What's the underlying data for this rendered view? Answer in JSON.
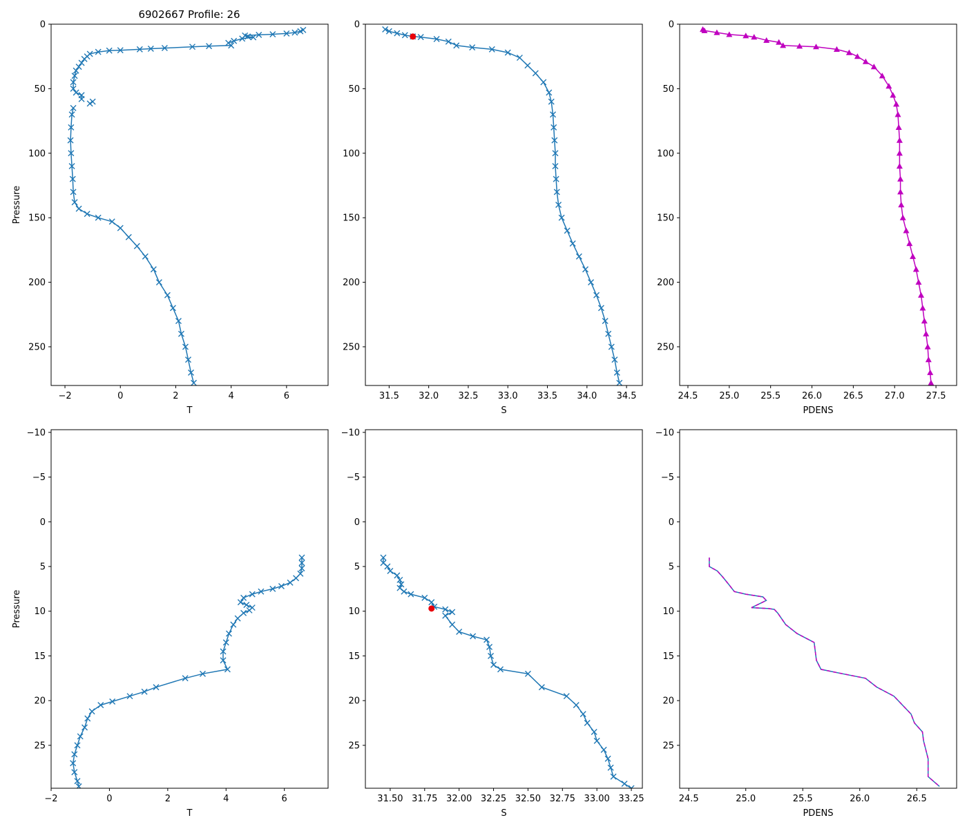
{
  "figure_title": "6902667 Profile: 26",
  "colors": {
    "blue": "#1f77b4",
    "magenta": "#bf00bf",
    "red": "#e8000b"
  },
  "chart_data": [
    {
      "id": "top-temperature",
      "type": "line",
      "marker": "x",
      "color": "#1f77b4",
      "title": "6902667 Profile: 26",
      "xlabel": "T",
      "ylabel": "Pressure",
      "xlim": [
        -2.5,
        7.5
      ],
      "ylim": [
        280,
        0
      ],
      "xticks": [
        -2,
        0,
        2,
        4,
        6
      ],
      "xticklabels": [
        "−2",
        "0",
        "2",
        "4",
        "6"
      ],
      "yticks": [
        0,
        50,
        100,
        150,
        200,
        250
      ],
      "yticklabels": [
        "0",
        "50",
        "100",
        "150",
        "200",
        "250"
      ],
      "points": [
        [
          6.6,
          4.5
        ],
        [
          6.5,
          5.5
        ],
        [
          6.3,
          6.5
        ],
        [
          6.0,
          7.2
        ],
        [
          5.5,
          7.8
        ],
        [
          5.0,
          8.3
        ],
        [
          4.5,
          8.8
        ],
        [
          4.6,
          9.6
        ],
        [
          4.8,
          10.2
        ],
        [
          4.4,
          11.2
        ],
        [
          4.1,
          13.0
        ],
        [
          3.9,
          14.5
        ],
        [
          4.0,
          16.5
        ],
        [
          3.2,
          17.0
        ],
        [
          2.6,
          17.5
        ],
        [
          1.6,
          18.5
        ],
        [
          1.1,
          19.0
        ],
        [
          0.7,
          19.5
        ],
        [
          0.0,
          20.2
        ],
        [
          -0.4,
          20.5
        ],
        [
          -0.8,
          21.5
        ],
        [
          -1.1,
          23.0
        ],
        [
          -1.2,
          25.0
        ],
        [
          -1.3,
          27.0
        ],
        [
          -1.4,
          30.0
        ],
        [
          -1.5,
          33.0
        ],
        [
          -1.6,
          36.0
        ],
        [
          -1.65,
          40.0
        ],
        [
          -1.7,
          45.0
        ],
        [
          -1.7,
          50.0
        ],
        [
          -1.6,
          53.0
        ],
        [
          -1.4,
          55.0
        ],
        [
          -1.4,
          58.0
        ]
      ],
      "points2": [
        [
          -1.0,
          60.0
        ],
        [
          -1.1,
          61.5
        ]
      ],
      "points3": [
        [
          -1.7,
          65.0
        ],
        [
          -1.75,
          70.0
        ],
        [
          -1.78,
          80.0
        ],
        [
          -1.8,
          90.0
        ],
        [
          -1.78,
          100.0
        ],
        [
          -1.75,
          110.0
        ],
        [
          -1.72,
          120.0
        ],
        [
          -1.7,
          130.0
        ],
        [
          -1.65,
          138.0
        ],
        [
          -1.5,
          143.0
        ],
        [
          -1.2,
          147.0
        ],
        [
          -0.8,
          150.0
        ],
        [
          -0.3,
          153.0
        ],
        [
          0.0,
          158.0
        ],
        [
          0.3,
          165.0
        ],
        [
          0.6,
          172.0
        ],
        [
          0.9,
          180.0
        ],
        [
          1.2,
          190.0
        ],
        [
          1.4,
          200.0
        ],
        [
          1.7,
          210.0
        ],
        [
          1.9,
          220.0
        ],
        [
          2.1,
          230.0
        ],
        [
          2.2,
          240.0
        ],
        [
          2.35,
          250.0
        ],
        [
          2.45,
          260.0
        ],
        [
          2.55,
          270.0
        ],
        [
          2.65,
          278.0
        ]
      ]
    },
    {
      "id": "top-salinity",
      "type": "line",
      "marker": "x",
      "color": "#1f77b4",
      "xlabel": "S",
      "ylabel": "",
      "xlim": [
        31.2,
        34.7
      ],
      "ylim": [
        280,
        0
      ],
      "xticks": [
        31.5,
        32.0,
        32.5,
        33.0,
        33.5,
        34.0,
        34.5
      ],
      "xticklabels": [
        "31.5",
        "32.0",
        "32.5",
        "33.0",
        "33.5",
        "34.0",
        "34.5"
      ],
      "yticks": [
        0,
        50,
        100,
        150,
        200,
        250
      ],
      "yticklabels": [
        "0",
        "50",
        "100",
        "150",
        "200",
        "250"
      ],
      "points": [
        [
          31.45,
          4.0
        ],
        [
          31.5,
          5.5
        ],
        [
          31.6,
          7.0
        ],
        [
          31.7,
          8.5
        ],
        [
          31.8,
          9.5
        ],
        [
          31.9,
          10.0
        ],
        [
          32.1,
          11.5
        ],
        [
          32.25,
          13.5
        ],
        [
          32.35,
          16.5
        ],
        [
          32.55,
          18.0
        ],
        [
          32.8,
          19.5
        ],
        [
          33.0,
          22.0
        ],
        [
          33.15,
          26.0
        ],
        [
          33.25,
          32.0
        ],
        [
          33.35,
          38.0
        ],
        [
          33.45,
          45.0
        ],
        [
          33.52,
          53.0
        ],
        [
          33.55,
          60.0
        ],
        [
          33.57,
          70.0
        ],
        [
          33.58,
          80.0
        ],
        [
          33.59,
          90.0
        ],
        [
          33.6,
          100.0
        ],
        [
          33.6,
          110.0
        ],
        [
          33.61,
          120.0
        ],
        [
          33.62,
          130.0
        ],
        [
          33.64,
          140.0
        ],
        [
          33.68,
          150.0
        ],
        [
          33.75,
          160.0
        ],
        [
          33.82,
          170.0
        ],
        [
          33.9,
          180.0
        ],
        [
          33.98,
          190.0
        ],
        [
          34.05,
          200.0
        ],
        [
          34.12,
          210.0
        ],
        [
          34.18,
          220.0
        ],
        [
          34.23,
          230.0
        ],
        [
          34.27,
          240.0
        ],
        [
          34.31,
          250.0
        ],
        [
          34.35,
          260.0
        ],
        [
          34.38,
          270.0
        ],
        [
          34.41,
          278.0
        ]
      ],
      "highlight": [
        31.8,
        9.6
      ]
    },
    {
      "id": "top-density",
      "type": "line",
      "marker": "triangle",
      "color": "#bf00bf",
      "xlabel": "PDENS",
      "ylabel": "",
      "xlim": [
        24.4,
        27.75
      ],
      "ylim": [
        280,
        0
      ],
      "xticks": [
        24.5,
        25.0,
        25.5,
        26.0,
        26.5,
        27.0,
        27.5
      ],
      "xticklabels": [
        "24.5",
        "25.0",
        "25.5",
        "26.0",
        "26.5",
        "27.0",
        "27.5"
      ],
      "yticks": [
        0,
        50,
        100,
        150,
        200,
        250
      ],
      "yticklabels": [
        "0",
        "50",
        "100",
        "150",
        "200",
        "250"
      ],
      "points": [
        [
          24.68,
          4.0
        ],
        [
          24.7,
          5.0
        ],
        [
          24.85,
          6.5
        ],
        [
          25.0,
          8.0
        ],
        [
          25.2,
          9.0
        ],
        [
          25.3,
          10.0
        ],
        [
          25.45,
          12.5
        ],
        [
          25.6,
          14.0
        ],
        [
          25.65,
          16.5
        ],
        [
          25.85,
          17.0
        ],
        [
          26.05,
          17.5
        ],
        [
          26.3,
          19.5
        ],
        [
          26.45,
          22.0
        ],
        [
          26.55,
          25.0
        ],
        [
          26.65,
          29.0
        ],
        [
          26.75,
          33.0
        ],
        [
          26.85,
          40.0
        ],
        [
          26.93,
          48.0
        ],
        [
          26.98,
          55.0
        ],
        [
          27.02,
          62.0
        ],
        [
          27.04,
          70.0
        ],
        [
          27.05,
          80.0
        ],
        [
          27.06,
          90.0
        ],
        [
          27.06,
          100.0
        ],
        [
          27.06,
          110.0
        ],
        [
          27.07,
          120.0
        ],
        [
          27.07,
          130.0
        ],
        [
          27.08,
          140.0
        ],
        [
          27.1,
          150.0
        ],
        [
          27.14,
          160.0
        ],
        [
          27.18,
          170.0
        ],
        [
          27.22,
          180.0
        ],
        [
          27.26,
          190.0
        ],
        [
          27.29,
          200.0
        ],
        [
          27.32,
          210.0
        ],
        [
          27.34,
          220.0
        ],
        [
          27.36,
          230.0
        ],
        [
          27.38,
          240.0
        ],
        [
          27.4,
          250.0
        ],
        [
          27.41,
          260.0
        ],
        [
          27.43,
          270.0
        ],
        [
          27.44,
          278.0
        ]
      ]
    },
    {
      "id": "bottom-temperature",
      "type": "line",
      "marker": "x",
      "color": "#1f77b4",
      "xlabel": "T",
      "ylabel": "Pressure",
      "xlim": [
        -2,
        7.5
      ],
      "ylim": [
        29.8,
        -10.3
      ],
      "xticks": [
        -2,
        0,
        2,
        4,
        6
      ],
      "xticklabels": [
        "−2",
        "0",
        "2",
        "4",
        "6"
      ],
      "yticks": [
        -10,
        -5,
        0,
        5,
        10,
        15,
        20,
        25
      ],
      "yticklabels": [
        "−10",
        "−5",
        "0",
        "5",
        "10",
        "15",
        "20",
        "25"
      ],
      "points": [
        [
          6.6,
          4.0
        ],
        [
          6.6,
          4.6
        ],
        [
          6.6,
          5.2
        ],
        [
          6.55,
          5.8
        ],
        [
          6.4,
          6.3
        ],
        [
          6.2,
          6.8
        ],
        [
          5.9,
          7.2
        ],
        [
          5.6,
          7.5
        ],
        [
          5.2,
          7.8
        ],
        [
          4.9,
          8.1
        ],
        [
          4.6,
          8.5
        ],
        [
          4.5,
          9.0
        ],
        [
          4.7,
          9.3
        ],
        [
          4.9,
          9.6
        ],
        [
          4.8,
          9.9
        ],
        [
          4.6,
          10.2
        ],
        [
          4.4,
          10.8
        ],
        [
          4.25,
          11.5
        ],
        [
          4.1,
          12.5
        ],
        [
          4.0,
          13.5
        ],
        [
          3.9,
          14.5
        ],
        [
          3.9,
          15.5
        ],
        [
          4.05,
          16.5
        ],
        [
          3.2,
          17.0
        ],
        [
          2.6,
          17.5
        ],
        [
          1.6,
          18.5
        ],
        [
          1.2,
          19.0
        ],
        [
          0.7,
          19.5
        ],
        [
          0.1,
          20.1
        ],
        [
          -0.3,
          20.5
        ],
        [
          -0.6,
          21.2
        ],
        [
          -0.75,
          22.0
        ],
        [
          -0.85,
          23.0
        ],
        [
          -1.0,
          24.0
        ],
        [
          -1.1,
          25.0
        ],
        [
          -1.2,
          26.0
        ],
        [
          -1.25,
          27.0
        ],
        [
          -1.2,
          28.0
        ],
        [
          -1.1,
          29.0
        ],
        [
          -1.05,
          29.6
        ]
      ]
    },
    {
      "id": "bottom-salinity",
      "type": "line",
      "marker": "x",
      "color": "#1f77b4",
      "xlabel": "S",
      "ylabel": "",
      "xlim": [
        31.32,
        33.33
      ],
      "ylim": [
        29.8,
        -10.3
      ],
      "xticks": [
        31.5,
        31.75,
        32.0,
        32.25,
        32.5,
        32.75,
        33.0,
        33.25
      ],
      "xticklabels": [
        "31.50",
        "31.75",
        "32.00",
        "32.25",
        "32.50",
        "32.75",
        "33.00",
        "33.25"
      ],
      "yticks": [
        -10,
        -5,
        0,
        5,
        10,
        15,
        20,
        25
      ],
      "yticklabels": [
        "−10",
        "−5",
        "0",
        "5",
        "10",
        "15",
        "20",
        "25"
      ],
      "points": [
        [
          31.45,
          4.0
        ],
        [
          31.45,
          4.6
        ],
        [
          31.48,
          5.0
        ],
        [
          31.5,
          5.5
        ],
        [
          31.55,
          6.0
        ],
        [
          31.57,
          6.5
        ],
        [
          31.58,
          7.0
        ],
        [
          31.57,
          7.4
        ],
        [
          31.6,
          7.8
        ],
        [
          31.65,
          8.1
        ],
        [
          31.75,
          8.5
        ],
        [
          31.8,
          9.0
        ],
        [
          31.82,
          9.5
        ],
        [
          31.9,
          9.8
        ],
        [
          31.95,
          10.1
        ],
        [
          31.9,
          10.5
        ],
        [
          31.95,
          11.5
        ],
        [
          32.0,
          12.3
        ],
        [
          32.1,
          12.8
        ],
        [
          32.2,
          13.2
        ],
        [
          32.22,
          14.0
        ],
        [
          32.23,
          15.0
        ],
        [
          32.25,
          16.0
        ],
        [
          32.3,
          16.5
        ],
        [
          32.5,
          17.0
        ],
        [
          32.6,
          18.5
        ],
        [
          32.78,
          19.5
        ],
        [
          32.85,
          20.5
        ],
        [
          32.9,
          21.5
        ],
        [
          32.93,
          22.5
        ],
        [
          32.98,
          23.5
        ],
        [
          33.0,
          24.5
        ],
        [
          33.05,
          25.5
        ],
        [
          33.08,
          26.5
        ],
        [
          33.1,
          27.5
        ],
        [
          33.12,
          28.5
        ],
        [
          33.2,
          29.3
        ],
        [
          33.25,
          29.8
        ]
      ],
      "highlight": [
        31.8,
        9.7
      ]
    },
    {
      "id": "bottom-density",
      "type": "line",
      "marker": "dashed",
      "color": "#bf00bf",
      "xlabel": "PDENS",
      "ylabel": "",
      "xlim": [
        24.42,
        26.85
      ],
      "ylim": [
        29.8,
        -10.3
      ],
      "xticks": [
        24.5,
        25.0,
        25.5,
        26.0,
        26.5
      ],
      "xticklabels": [
        "24.5",
        "25.0",
        "25.5",
        "26.0",
        "26.5"
      ],
      "yticks": [
        -10,
        -5,
        0,
        5,
        10,
        15,
        20,
        25
      ],
      "yticklabels": [
        "−10",
        "−5",
        "0",
        "5",
        "10",
        "15",
        "20",
        "25"
      ],
      "points": [
        [
          24.68,
          4.0
        ],
        [
          24.68,
          5.0
        ],
        [
          24.75,
          5.5
        ],
        [
          24.8,
          6.2
        ],
        [
          24.85,
          7.0
        ],
        [
          24.9,
          7.8
        ],
        [
          25.0,
          8.1
        ],
        [
          25.15,
          8.4
        ],
        [
          25.18,
          8.8
        ],
        [
          25.05,
          9.6
        ],
        [
          25.2,
          9.7
        ],
        [
          25.25,
          9.8
        ],
        [
          25.28,
          10.2
        ],
        [
          25.35,
          11.5
        ],
        [
          25.45,
          12.5
        ],
        [
          25.6,
          13.5
        ],
        [
          25.62,
          15.5
        ],
        [
          25.66,
          16.5
        ],
        [
          25.85,
          17.0
        ],
        [
          26.05,
          17.5
        ],
        [
          26.15,
          18.5
        ],
        [
          26.3,
          19.5
        ],
        [
          26.45,
          21.5
        ],
        [
          26.48,
          22.5
        ],
        [
          26.55,
          23.5
        ],
        [
          26.56,
          24.5
        ],
        [
          26.6,
          26.5
        ],
        [
          26.6,
          28.5
        ],
        [
          26.7,
          29.6
        ]
      ]
    }
  ]
}
